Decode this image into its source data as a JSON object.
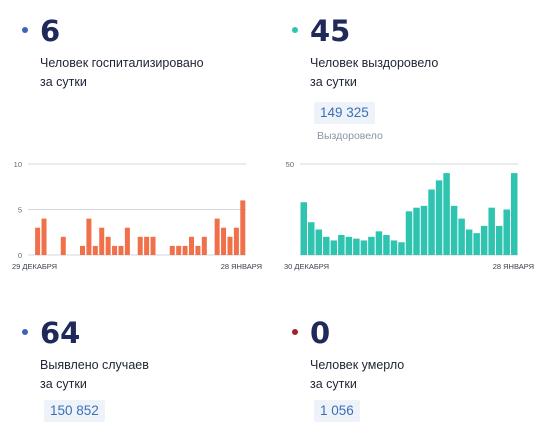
{
  "cards": [
    {
      "number": "6",
      "line1": "Человек госпитализировано",
      "line2": "за сутки",
      "dot_color": "#3d63b8"
    },
    {
      "number": "45",
      "line1": "Человек выздоровело",
      "line2": "за сутки",
      "dot_color": "#2ec4b0",
      "total": "149 325",
      "total_label": "Выздоровело"
    },
    {
      "number": "64",
      "line1": "Выявлено случаев",
      "line2": "за сутки",
      "dot_color": "#3d63b8",
      "total": "150 852"
    },
    {
      "number": "0",
      "line1": "Человек умерло",
      "line2": "за сутки",
      "dot_color": "#a4202c",
      "total": "1 056"
    }
  ],
  "chart_data": [
    {
      "type": "bar",
      "color": "#f0704a",
      "ylim": [
        0,
        10
      ],
      "yticks": [
        "10",
        "5",
        "0"
      ],
      "x_start_label": "29 ДЕКАБРЯ",
      "x_end_label": "28 ЯНВАРЯ",
      "values": [
        0,
        3,
        4,
        0,
        0,
        2,
        0,
        0,
        1,
        4,
        1,
        3,
        2,
        1,
        1,
        3,
        0,
        2,
        2,
        2,
        0,
        0,
        1,
        1,
        1,
        2,
        1,
        2,
        0,
        4,
        3,
        2,
        3,
        6
      ]
    },
    {
      "type": "bar",
      "color": "#2ec4b0",
      "ylim": [
        0,
        50
      ],
      "yticks": [
        "50"
      ],
      "x_start_label": "30 ДЕКАБРЯ",
      "x_end_label": "28 ЯНВАРЯ",
      "values": [
        29,
        18,
        14,
        10,
        8,
        11,
        10,
        9,
        8,
        10,
        13,
        11,
        8,
        7,
        24,
        26,
        27,
        36,
        41,
        45,
        27,
        20,
        14,
        12,
        16,
        26,
        16,
        25,
        45
      ]
    }
  ]
}
